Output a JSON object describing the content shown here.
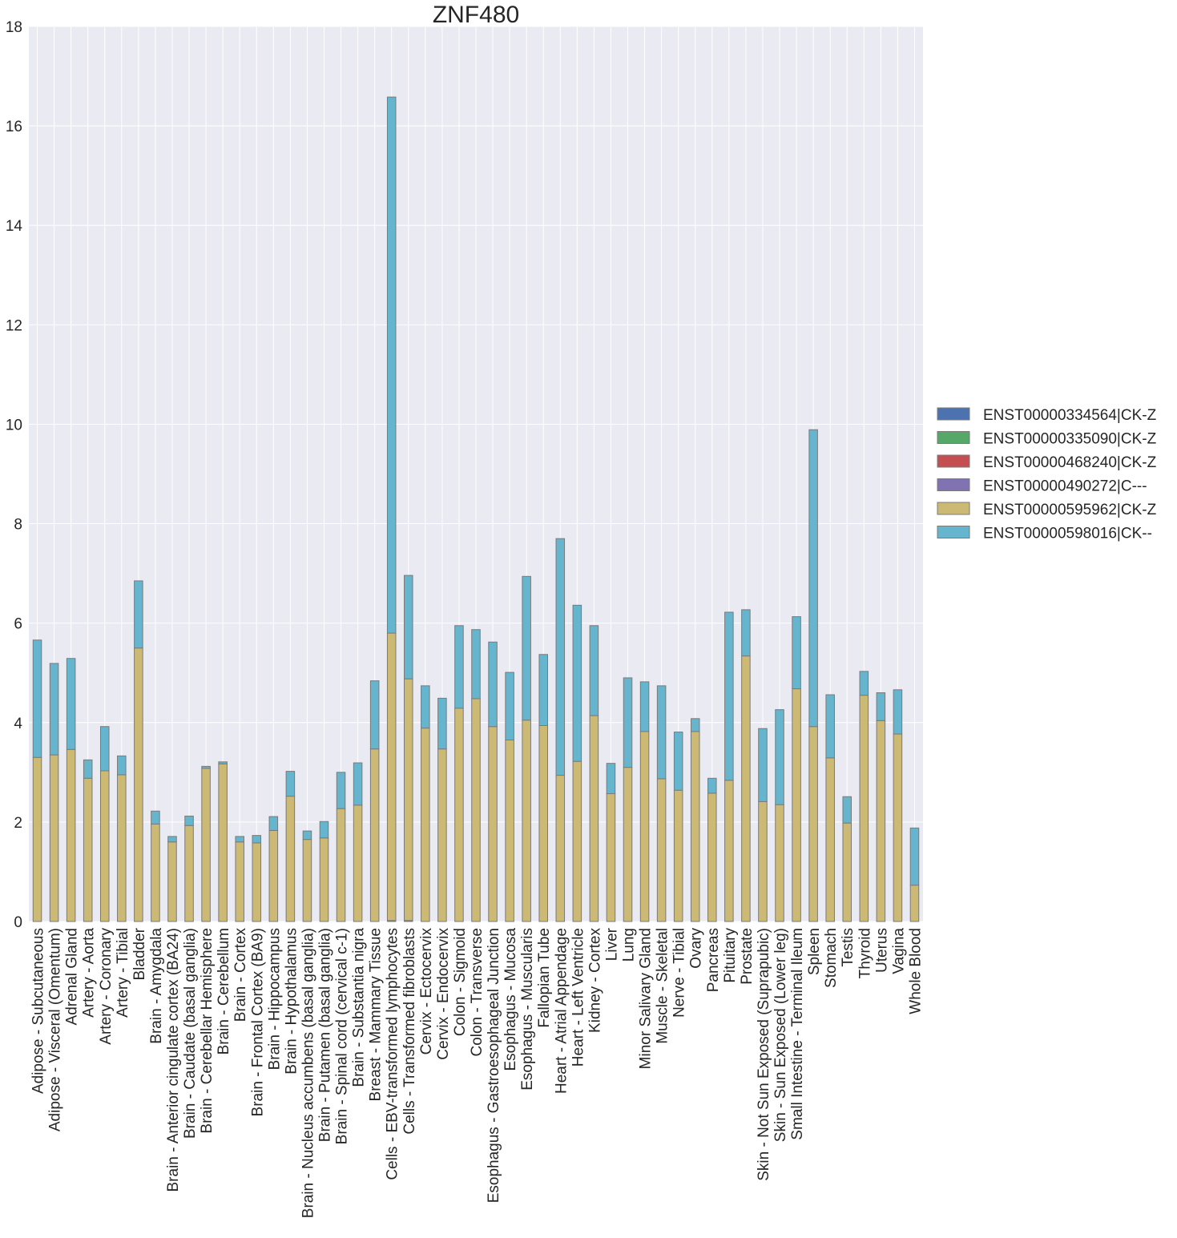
{
  "chart_data": {
    "type": "bar",
    "stacked": true,
    "title": "ZNF480",
    "xlabel": "",
    "ylabel": "",
    "ylim": [
      0,
      18
    ],
    "yticks": [
      0,
      2,
      4,
      6,
      8,
      10,
      12,
      14,
      16,
      18
    ],
    "grid": true,
    "legend_position": "right",
    "colors": {
      "background": "#EAEAF2",
      "grid": "#FFFFFF",
      "bar_edge": "#7A7A7A"
    },
    "categories": [
      "Adipose - Subcutaneous",
      "Adipose - Visceral (Omentum)",
      "Adrenal Gland",
      "Artery - Aorta",
      "Artery - Coronary",
      "Artery - Tibial",
      "Bladder",
      "Brain - Amygdala",
      "Brain - Anterior cingulate cortex (BA24)",
      "Brain - Caudate (basal ganglia)",
      "Brain - Cerebellar Hemisphere",
      "Brain - Cerebellum",
      "Brain - Cortex",
      "Brain - Frontal Cortex (BA9)",
      "Brain - Hippocampus",
      "Brain - Hypothalamus",
      "Brain - Nucleus accumbens (basal ganglia)",
      "Brain - Putamen (basal ganglia)",
      "Brain - Spinal cord (cervical c-1)",
      "Brain - Substantia nigra",
      "Breast - Mammary Tissue",
      "Cells - EBV-transformed lymphocytes",
      "Cells - Transformed fibroblasts",
      "Cervix - Ectocervix",
      "Cervix - Endocervix",
      "Colon - Sigmoid",
      "Colon - Transverse",
      "Esophagus - Gastroesophageal Junction",
      "Esophagus - Mucosa",
      "Esophagus - Muscularis",
      "Fallopian Tube",
      "Heart - Atrial Appendage",
      "Heart - Left Ventricle",
      "Kidney - Cortex",
      "Liver",
      "Lung",
      "Minor Salivary Gland",
      "Muscle - Skeletal",
      "Nerve - Tibial",
      "Ovary",
      "Pancreas",
      "Pituitary",
      "Prostate",
      "Skin - Not Sun Exposed (Suprapubic)",
      "Skin - Sun Exposed (Lower leg)",
      "Small Intestine - Terminal Ileum",
      "Spleen",
      "Stomach",
      "Testis",
      "Thyroid",
      "Uterus",
      "Vagina",
      "Whole Blood"
    ],
    "series": [
      {
        "name": "ENST00000334564|CK-Z",
        "color": "#4C72B0",
        "values": [
          0,
          0,
          0,
          0,
          0,
          0,
          0,
          0,
          0,
          0,
          0,
          0,
          0,
          0,
          0,
          0,
          0,
          0,
          0,
          0,
          0,
          0.02,
          0.02,
          0,
          0,
          0,
          0,
          0,
          0,
          0,
          0,
          0,
          0,
          0,
          0,
          0,
          0,
          0,
          0,
          0,
          0,
          0,
          0,
          0,
          0,
          0,
          0,
          0,
          0,
          0,
          0,
          0,
          0
        ]
      },
      {
        "name": "ENST00000335090|CK-Z",
        "color": "#55A868",
        "values": [
          0,
          0,
          0,
          0,
          0,
          0,
          0,
          0,
          0,
          0,
          0,
          0,
          0,
          0,
          0,
          0,
          0,
          0,
          0,
          0,
          0,
          0,
          0,
          0,
          0,
          0,
          0,
          0,
          0,
          0,
          0,
          0,
          0,
          0,
          0,
          0,
          0,
          0,
          0,
          0,
          0,
          0,
          0,
          0,
          0,
          0,
          0,
          0,
          0,
          0,
          0,
          0,
          0
        ]
      },
      {
        "name": "ENST00000468240|CK-Z",
        "color": "#C44E52",
        "values": [
          0,
          0,
          0,
          0,
          0,
          0,
          0,
          0,
          0,
          0,
          0,
          0,
          0,
          0,
          0,
          0,
          0,
          0,
          0,
          0,
          0,
          0,
          0,
          0,
          0,
          0,
          0,
          0,
          0,
          0,
          0,
          0,
          0,
          0,
          0,
          0,
          0,
          0,
          0,
          0,
          0,
          0,
          0,
          0,
          0,
          0,
          0,
          0,
          0,
          0,
          0,
          0,
          0
        ]
      },
      {
        "name": "ENST00000490272|C---",
        "color": "#8172B2",
        "values": [
          0,
          0,
          0,
          0,
          0,
          0,
          0,
          0,
          0,
          0,
          0,
          0,
          0,
          0,
          0,
          0,
          0,
          0,
          0,
          0,
          0,
          0,
          0,
          0,
          0,
          0,
          0,
          0,
          0,
          0,
          0,
          0,
          0,
          0,
          0,
          0,
          0,
          0,
          0,
          0,
          0,
          0,
          0,
          0,
          0,
          0,
          0,
          0,
          0,
          0,
          0,
          0,
          0
        ]
      },
      {
        "name": "ENST00000595962|CK-Z",
        "color": "#CCB974",
        "values": [
          3.3,
          3.35,
          3.46,
          2.88,
          3.03,
          2.95,
          5.5,
          1.96,
          1.6,
          1.93,
          3.08,
          3.17,
          1.6,
          1.58,
          1.83,
          2.52,
          1.65,
          1.68,
          2.27,
          2.34,
          3.47,
          5.78,
          4.86,
          3.89,
          3.47,
          4.29,
          4.48,
          3.92,
          3.65,
          4.05,
          3.94,
          2.94,
          3.22,
          4.14,
          2.57,
          3.1,
          3.82,
          2.87,
          2.64,
          3.82,
          2.58,
          2.84,
          5.34,
          2.41,
          2.35,
          4.68,
          3.92,
          3.29,
          1.98,
          4.55,
          4.04,
          3.77,
          0.73
        ]
      },
      {
        "name": "ENST00000598016|CK--",
        "color": "#64B5CD",
        "values": [
          2.36,
          1.84,
          1.83,
          0.37,
          0.89,
          0.38,
          1.35,
          0.26,
          0.11,
          0.19,
          0.04,
          0.04,
          0.11,
          0.15,
          0.28,
          0.5,
          0.17,
          0.33,
          0.73,
          0.85,
          1.37,
          10.78,
          2.08,
          0.85,
          1.02,
          1.66,
          1.39,
          1.7,
          1.36,
          2.89,
          1.43,
          4.76,
          3.14,
          1.81,
          0.61,
          1.8,
          1.0,
          1.87,
          1.17,
          0.26,
          0.3,
          3.38,
          0.93,
          1.47,
          1.91,
          1.45,
          5.97,
          1.27,
          0.53,
          0.48,
          0.56,
          0.89,
          1.15
        ]
      }
    ]
  }
}
